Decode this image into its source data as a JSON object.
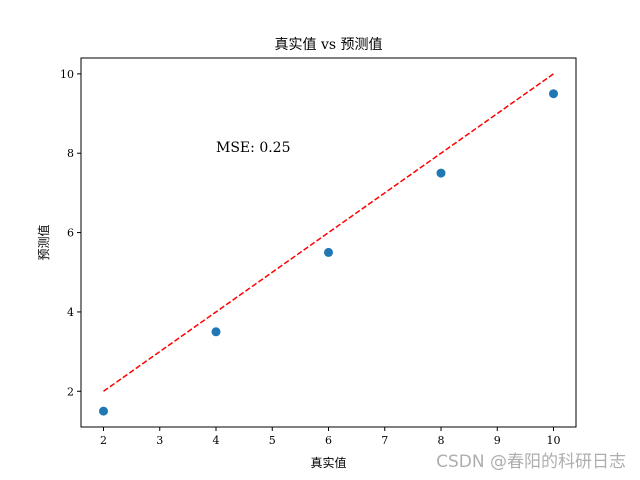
{
  "chart_data": {
    "type": "scatter",
    "title": "真实值 vs 预测值",
    "xlabel": "真实值",
    "ylabel": "预测值",
    "xlim": [
      1.6,
      10.4
    ],
    "ylim": [
      1.1,
      10.4
    ],
    "xticks": [
      2,
      3,
      4,
      5,
      6,
      7,
      8,
      9,
      10
    ],
    "yticks": [
      2,
      4,
      6,
      8,
      10
    ],
    "grid": false,
    "series": [
      {
        "type": "scatter",
        "color": "#1f77b4",
        "x": [
          2,
          4,
          6,
          8,
          10
        ],
        "y": [
          1.5,
          3.5,
          5.5,
          7.5,
          9.5
        ]
      },
      {
        "type": "line",
        "style": "dashed",
        "color": "#ff0000",
        "x": [
          2,
          10
        ],
        "y": [
          2,
          10
        ]
      }
    ],
    "annotation": {
      "text": "MSE: 0.25",
      "x": 4,
      "y": 8
    }
  },
  "watermark": "CSDN @春阳的科研日志"
}
